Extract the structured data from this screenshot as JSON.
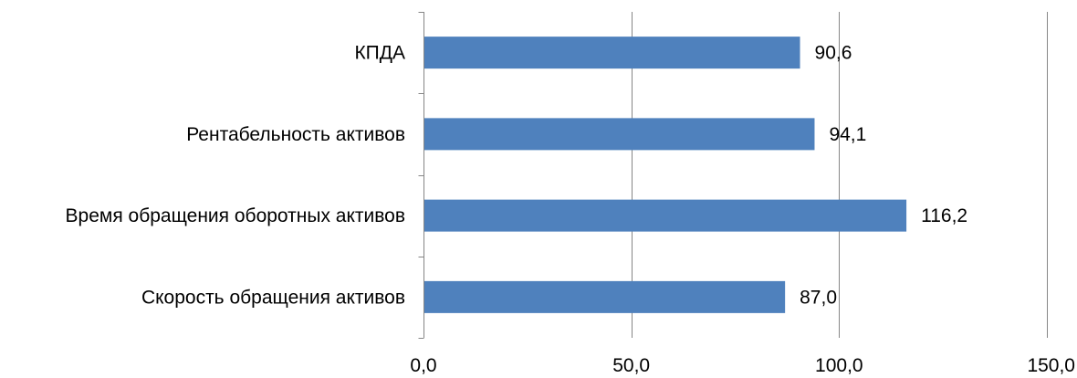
{
  "chart_data": {
    "type": "bar",
    "orientation": "horizontal",
    "categories": [
      "КПДА",
      "Рентабельность активов",
      "Время обращения оборотных активов",
      "Скорость обращения активов"
    ],
    "values": [
      90.6,
      94.1,
      116.2,
      87.0
    ],
    "value_labels": [
      "90,6",
      "94,1",
      "116,2",
      "87,0"
    ],
    "xlim": [
      0,
      150
    ],
    "xticks": [
      0,
      50,
      100,
      150
    ],
    "xtick_labels": [
      "0,0",
      "50,0",
      "100,0",
      "150,0"
    ],
    "grid": "vertical major gridlines",
    "legend": "none",
    "bar_color": "#4F81BD",
    "grid_color": "#868686"
  }
}
